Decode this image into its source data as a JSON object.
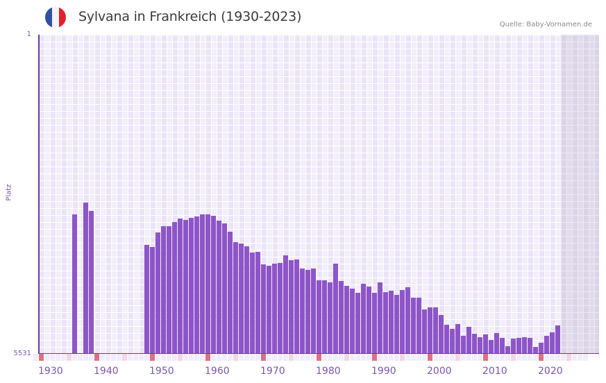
{
  "header": {
    "title": "Sylvana in Frankreich (1930-2023)",
    "source": "Quelle: Baby-Vornamen.de",
    "flag_icon": "france-flag-icon",
    "flag_colors": [
      "#2f4fa6",
      "#f4f4f4",
      "#e4202e"
    ]
  },
  "colors": {
    "bar": "#8e55c8",
    "axis": "#6a3a9a",
    "decade_marker": "#e0707e",
    "half_decade_marker": "#f3d6e0",
    "label": "#7a55b0"
  },
  "chart_data": {
    "type": "bar",
    "title": "Sylvana in Frankreich (1930-2023)",
    "xlabel": "",
    "ylabel": "Platz",
    "y_inverted": true,
    "ylim": [
      1,
      5531
    ],
    "y_ticks": [
      "1",
      "5531"
    ],
    "x_range": [
      1930,
      2030
    ],
    "x_ticks": [
      "1930",
      "1940",
      "1950",
      "1960",
      "1970",
      "1980",
      "1990",
      "2000",
      "2010",
      "2020"
    ],
    "future_shaded_from": 2024,
    "grid": true,
    "legend": null,
    "x": [
      1936,
      1938,
      1939,
      1949,
      1950,
      1951,
      1952,
      1953,
      1954,
      1955,
      1956,
      1957,
      1958,
      1959,
      1960,
      1961,
      1962,
      1963,
      1964,
      1965,
      1966,
      1967,
      1968,
      1969,
      1970,
      1971,
      1972,
      1973,
      1974,
      1975,
      1976,
      1977,
      1978,
      1979,
      1980,
      1981,
      1982,
      1983,
      1984,
      1985,
      1986,
      1987,
      1988,
      1989,
      1990,
      1991,
      1992,
      1993,
      1994,
      1995,
      1996,
      1997,
      1998,
      1999,
      2000,
      2001,
      2002,
      2003,
      2004,
      2005,
      2006,
      2007,
      2008,
      2009,
      2010,
      2011,
      2012,
      2013,
      2014,
      2015,
      2016,
      2017,
      2018,
      2019,
      2020,
      2021,
      2022,
      2023
    ],
    "values": [
      3114,
      2910,
      3054,
      3643,
      3679,
      3427,
      3319,
      3319,
      3247,
      3186,
      3210,
      3174,
      3150,
      3114,
      3114,
      3138,
      3222,
      3271,
      3415,
      3595,
      3619,
      3667,
      3775,
      3763,
      3980,
      4004,
      3968,
      3956,
      3823,
      3908,
      3896,
      4052,
      4076,
      4052,
      4256,
      4256,
      4292,
      3968,
      4268,
      4352,
      4400,
      4473,
      4317,
      4365,
      4473,
      4292,
      4461,
      4437,
      4509,
      4425,
      4377,
      4557,
      4557,
      4761,
      4725,
      4725,
      4857,
      5026,
      5098,
      5014,
      5218,
      5062,
      5182,
      5242,
      5194,
      5290,
      5170,
      5254,
      5398,
      5266,
      5254,
      5242,
      5254,
      5410,
      5338,
      5218,
      5158,
      5038
    ]
  }
}
